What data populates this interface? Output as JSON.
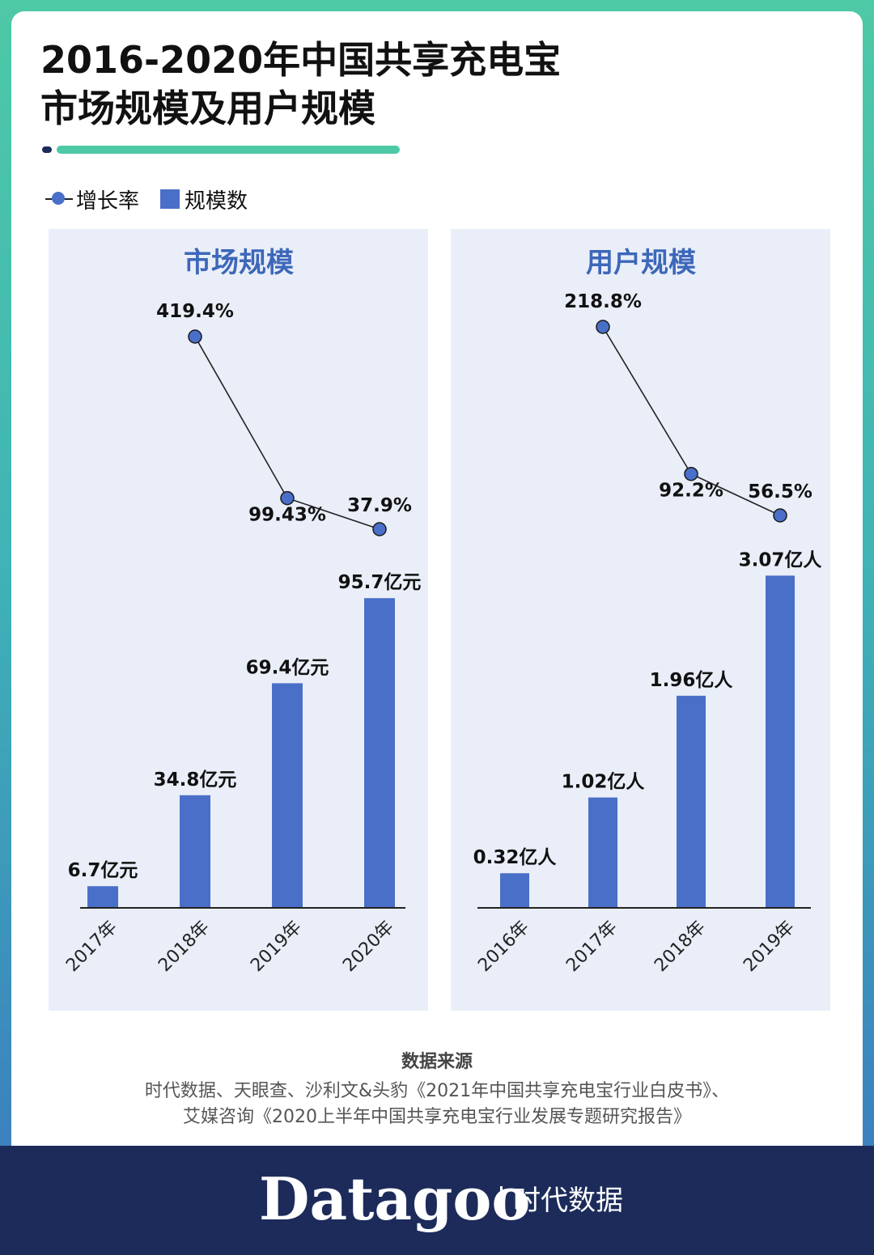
{
  "header": {
    "title_line1": "2016-2020年中国共享充电宝",
    "title_line2": "市场规模及用户规模"
  },
  "legend": {
    "line_label": "增长率",
    "bar_label": "规模数"
  },
  "colors": {
    "bar": "#4a6fc8",
    "panel_bg": "#e9eef8",
    "panel_title": "#3d67b9",
    "marker": "#4a6fc8",
    "footer_bg": "#1c2b5a",
    "accent_green": "#4ec9a6"
  },
  "chart_data": [
    {
      "type": "bar",
      "title": "市场规模",
      "categories": [
        "2017年",
        "2018年",
        "2019年",
        "2020年"
      ],
      "values": [
        6.7,
        34.8,
        69.4,
        95.7
      ],
      "value_labels": [
        "6.7亿元",
        "34.8亿元",
        "69.4亿元",
        "95.7亿元"
      ],
      "ylim": [
        0,
        100
      ],
      "growth": {
        "type": "line",
        "categories": [
          "2018年",
          "2019年",
          "2020年"
        ],
        "values": [
          419.4,
          99.43,
          37.9
        ],
        "labels": [
          "419.4%",
          "99.43%",
          "37.9%"
        ]
      }
    },
    {
      "type": "bar",
      "title": "用户规模",
      "categories": [
        "2016年",
        "2017年",
        "2018年",
        "2019年"
      ],
      "values": [
        0.32,
        1.02,
        1.96,
        3.07
      ],
      "value_labels": [
        "0.32亿人",
        "1.02亿人",
        "1.96亿人",
        "3.07亿人"
      ],
      "ylim": [
        0,
        3.2
      ],
      "growth": {
        "type": "line",
        "categories": [
          "2017年",
          "2018年",
          "2019年"
        ],
        "values": [
          218.8,
          92.2,
          56.5
        ],
        "labels": [
          "218.8%",
          "92.2%",
          "56.5%"
        ]
      }
    }
  ],
  "source": {
    "heading": "数据来源",
    "line1": "时代数据、天眼查、沙利文&头豹《2021年中国共享充电宝行业白皮书》、",
    "line2": "艾媒咨询《2020上半年中国共享充电宝行业发展专题研究报告》"
  },
  "footer": {
    "brand": "Datagoo",
    "brand_cn": "时代数据"
  }
}
